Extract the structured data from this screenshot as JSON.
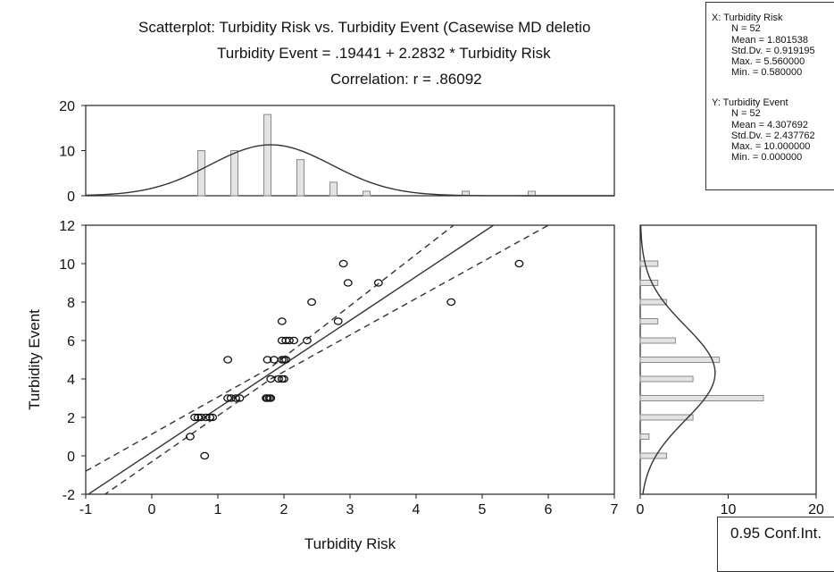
{
  "chart_data": [
    {
      "type": "scatter",
      "title": "Scatterplot: Turbidity Risk vs. Turbidity Event (Casewise MD deletio",
      "subtitle": "Turbidity Event = .19441 + 2.2832 * Turbidity Risk",
      "annotation": "Correlation: r = .86092",
      "xlabel": "Turbidity Risk",
      "ylabel": "Turbidity Event",
      "xlim": [
        -1,
        7
      ],
      "ylim": [
        -2,
        12
      ],
      "x_ticks": [
        "-1",
        "0",
        "1",
        "2",
        "3",
        "4",
        "5",
        "6",
        "7"
      ],
      "y_ticks": [
        "-2",
        "0",
        "2",
        "4",
        "6",
        "8",
        "10",
        "12"
      ],
      "points": [
        {
          "x": 0.58,
          "y": 1
        },
        {
          "x": 0.8,
          "y": 0
        },
        {
          "x": 0.65,
          "y": 2
        },
        {
          "x": 0.7,
          "y": 2
        },
        {
          "x": 0.75,
          "y": 2
        },
        {
          "x": 0.82,
          "y": 2
        },
        {
          "x": 0.88,
          "y": 2
        },
        {
          "x": 0.92,
          "y": 2
        },
        {
          "x": 1.15,
          "y": 3
        },
        {
          "x": 1.2,
          "y": 3
        },
        {
          "x": 1.27,
          "y": 3
        },
        {
          "x": 1.33,
          "y": 3
        },
        {
          "x": 1.73,
          "y": 3
        },
        {
          "x": 1.75,
          "y": 3
        },
        {
          "x": 1.78,
          "y": 3
        },
        {
          "x": 1.8,
          "y": 3
        },
        {
          "x": 1.8,
          "y": 4
        },
        {
          "x": 1.92,
          "y": 4
        },
        {
          "x": 1.97,
          "y": 4
        },
        {
          "x": 2.0,
          "y": 4
        },
        {
          "x": 1.15,
          "y": 5
        },
        {
          "x": 1.75,
          "y": 5
        },
        {
          "x": 1.85,
          "y": 5
        },
        {
          "x": 1.97,
          "y": 5
        },
        {
          "x": 2.0,
          "y": 5
        },
        {
          "x": 2.03,
          "y": 5
        },
        {
          "x": 1.97,
          "y": 6
        },
        {
          "x": 2.03,
          "y": 6
        },
        {
          "x": 2.08,
          "y": 6
        },
        {
          "x": 2.15,
          "y": 6
        },
        {
          "x": 2.35,
          "y": 6
        },
        {
          "x": 1.97,
          "y": 7
        },
        {
          "x": 2.82,
          "y": 7
        },
        {
          "x": 2.42,
          "y": 8
        },
        {
          "x": 4.53,
          "y": 8
        },
        {
          "x": 2.97,
          "y": 9
        },
        {
          "x": 3.43,
          "y": 9
        },
        {
          "x": 2.9,
          "y": 10
        },
        {
          "x": 5.56,
          "y": 10
        }
      ],
      "regression": {
        "intercept": 0.19441,
        "slope": 2.2832
      },
      "confidence_band": {
        "level": 0.95,
        "x": [
          -1,
          1.8,
          7
        ],
        "lower": [
          -2.7,
          4.0,
          13.9
        ],
        "upper": [
          -0.8,
          4.6,
          18.5
        ]
      },
      "legend": "0.95 Conf.Int."
    },
    {
      "type": "bar",
      "title": "",
      "role": "marginal histogram of Turbidity Risk",
      "ylim": [
        0,
        20
      ],
      "y_ticks": [
        "0",
        "10",
        "20"
      ],
      "bin_centers": [
        0.75,
        1.25,
        1.75,
        2.25,
        2.75,
        3.25,
        3.75,
        4.25,
        4.75,
        5.25,
        5.75
      ],
      "counts": [
        10,
        10,
        18,
        8,
        3,
        1,
        0,
        0,
        1,
        0,
        1
      ],
      "normal_curve": {
        "mean": 1.801538,
        "sd": 0.919195
      }
    },
    {
      "type": "bar",
      "title": "",
      "role": "marginal histogram of Turbidity Event",
      "orientation": "horizontal",
      "xlim": [
        0,
        20
      ],
      "x_ticks": [
        "0",
        "10",
        "20"
      ],
      "bin_centers": [
        0,
        1,
        2,
        3,
        4,
        5,
        6,
        7,
        8,
        9,
        10
      ],
      "counts": [
        3,
        1,
        6,
        14,
        6,
        9,
        4,
        2,
        3,
        2,
        2
      ],
      "normal_curve": {
        "mean": 4.307692,
        "sd": 2.437762
      }
    }
  ],
  "stats": {
    "x": {
      "header": "X:  Turbidity Risk",
      "lines": [
        "N = 52",
        "Mean = 1.801538",
        "Std.Dv. = 0.919195",
        "Max. = 5.560000",
        "Min. = 0.580000"
      ]
    },
    "y": {
      "header": "Y:  Turbidity Event",
      "lines": [
        "N = 52",
        "Mean = 4.307692",
        "Std.Dv. = 2.437762",
        "Max. = 10.000000",
        "Min. = 0.000000"
      ]
    }
  },
  "colors": {
    "axis": "#222222",
    "line": "#333333",
    "bar_fill": "#e3e3e3",
    "bar_dark": "#8a8a8a"
  }
}
